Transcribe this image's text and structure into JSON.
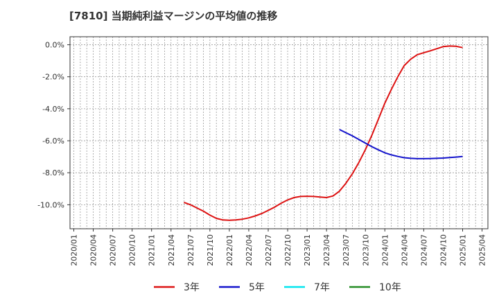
{
  "chart_data": {
    "type": "line",
    "title": "[7810]  当期純利益マージンの平均値の推移",
    "xlabel": "",
    "ylabel": "",
    "ylim": [
      -11.5,
      0.5
    ],
    "y_ticks": [
      0,
      -2,
      -4,
      -6,
      -8,
      -10
    ],
    "y_tick_labels": [
      "0.0%",
      "-2.0%",
      "-4.0%",
      "-6.0%",
      "-8.0%",
      "-10.0%"
    ],
    "x_tick_labels": [
      "2020/01",
      "2020/04",
      "2020/07",
      "2020/10",
      "2021/01",
      "2021/04",
      "2021/07",
      "2021/10",
      "2022/01",
      "2022/04",
      "2022/07",
      "2022/10",
      "2023/01",
      "2023/04",
      "2023/07",
      "2023/10",
      "2024/01",
      "2024/04",
      "2024/07",
      "2024/10",
      "2025/01",
      "2025/04"
    ],
    "grid": true,
    "legend_position": "bottom",
    "series": [
      {
        "name": "3年",
        "color": "#dd1111",
        "points": [
          [
            "2021/06",
            -9.85
          ],
          [
            "2021/07",
            -10.0
          ],
          [
            "2021/08",
            -10.2
          ],
          [
            "2021/09",
            -10.4
          ],
          [
            "2021/10",
            -10.65
          ],
          [
            "2021/11",
            -10.85
          ],
          [
            "2021/12",
            -10.95
          ],
          [
            "2022/01",
            -10.97
          ],
          [
            "2022/02",
            -10.95
          ],
          [
            "2022/03",
            -10.9
          ],
          [
            "2022/04",
            -10.82
          ],
          [
            "2022/05",
            -10.7
          ],
          [
            "2022/06",
            -10.55
          ],
          [
            "2022/07",
            -10.35
          ],
          [
            "2022/08",
            -10.15
          ],
          [
            "2022/09",
            -9.9
          ],
          [
            "2022/10",
            -9.7
          ],
          [
            "2022/11",
            -9.55
          ],
          [
            "2022/12",
            -9.48
          ],
          [
            "2023/01",
            -9.47
          ],
          [
            "2023/02",
            -9.48
          ],
          [
            "2023/03",
            -9.52
          ],
          [
            "2023/04",
            -9.55
          ],
          [
            "2023/05",
            -9.45
          ],
          [
            "2023/06",
            -9.15
          ],
          [
            "2023/07",
            -8.65
          ],
          [
            "2023/08",
            -8.05
          ],
          [
            "2023/09",
            -7.35
          ],
          [
            "2023/10",
            -6.55
          ],
          [
            "2023/11",
            -5.65
          ],
          [
            "2023/12",
            -4.65
          ],
          [
            "2024/01",
            -3.65
          ],
          [
            "2024/02",
            -2.8
          ],
          [
            "2024/03",
            -2.0
          ],
          [
            "2024/04",
            -1.3
          ],
          [
            "2024/05",
            -0.9
          ],
          [
            "2024/06",
            -0.62
          ],
          [
            "2024/07",
            -0.5
          ],
          [
            "2024/08",
            -0.38
          ],
          [
            "2024/09",
            -0.25
          ],
          [
            "2024/10",
            -0.12
          ],
          [
            "2024/11",
            -0.08
          ],
          [
            "2024/12",
            -0.1
          ],
          [
            "2025/01",
            -0.18
          ]
        ]
      },
      {
        "name": "5年",
        "color": "#1111cc",
        "points": [
          [
            "2023/06",
            -5.3
          ],
          [
            "2023/07",
            -5.5
          ],
          [
            "2023/08",
            -5.7
          ],
          [
            "2023/09",
            -5.92
          ],
          [
            "2023/10",
            -6.15
          ],
          [
            "2023/11",
            -6.37
          ],
          [
            "2023/12",
            -6.57
          ],
          [
            "2024/01",
            -6.75
          ],
          [
            "2024/02",
            -6.88
          ],
          [
            "2024/03",
            -6.98
          ],
          [
            "2024/04",
            -7.06
          ],
          [
            "2024/05",
            -7.1
          ],
          [
            "2024/06",
            -7.12
          ],
          [
            "2024/07",
            -7.12
          ],
          [
            "2024/08",
            -7.11
          ],
          [
            "2024/09",
            -7.1
          ],
          [
            "2024/10",
            -7.08
          ],
          [
            "2024/11",
            -7.05
          ],
          [
            "2024/12",
            -7.02
          ],
          [
            "2025/01",
            -6.98
          ]
        ]
      },
      {
        "name": "7年",
        "color": "#00e5ee",
        "points": []
      },
      {
        "name": "10年",
        "color": "#228b22",
        "points": []
      }
    ]
  }
}
